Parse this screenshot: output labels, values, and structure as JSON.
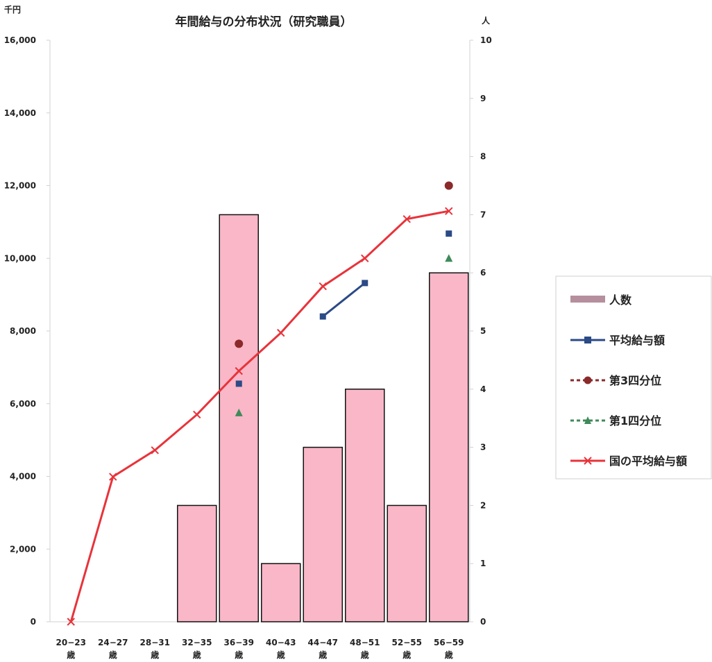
{
  "chart_data": {
    "type": "bar",
    "title": "年間給与の分布状況（研究職員）",
    "left_axis": {
      "unit_label": "千円",
      "ylim": [
        0,
        16000
      ],
      "ticks": [
        0,
        2000,
        4000,
        6000,
        8000,
        10000,
        12000,
        14000,
        16000
      ],
      "tick_labels": [
        "0",
        "2,000",
        "4,000",
        "6,000",
        "8,000",
        "10,000",
        "12,000",
        "14,000",
        "16,000"
      ]
    },
    "right_axis": {
      "unit_label": "人",
      "ylim": [
        0,
        10
      ],
      "ticks": [
        0,
        1,
        2,
        3,
        4,
        5,
        6,
        7,
        8,
        9,
        10
      ],
      "tick_labels": [
        "0",
        "1",
        "2",
        "3",
        "4",
        "5",
        "6",
        "7",
        "8",
        "9",
        "10"
      ]
    },
    "categories": [
      "20−23歳",
      "24−27歳",
      "28−31歳",
      "32−35歳",
      "36−39歳",
      "40−43歳",
      "44−47歳",
      "48−51歳",
      "52−55歳",
      "56−59歳"
    ],
    "category_label_top": [
      "20−23",
      "24−27",
      "28−31",
      "32−35",
      "36−39",
      "40−43",
      "44−47",
      "48−51",
      "52−55",
      "56−59"
    ],
    "category_label_bottom": "歳",
    "grid": false,
    "legend_position": "right",
    "series": [
      {
        "name": "人数",
        "type": "bar",
        "axis": "right",
        "color": "#f9b7c8",
        "stroke": "#111111",
        "values": [
          0,
          0,
          0,
          2,
          7,
          1,
          3,
          4,
          2,
          6
        ]
      },
      {
        "name": "平均給与額",
        "type": "line",
        "axis": "left",
        "color": "#2b4a86",
        "marker": "square",
        "values": [
          null,
          null,
          null,
          null,
          6550,
          null,
          8400,
          9320,
          null,
          10680
        ]
      },
      {
        "name": "第3四分位",
        "type": "scatter",
        "axis": "left",
        "color": "#8b2a2a",
        "marker": "circle",
        "values": [
          null,
          null,
          null,
          null,
          7650,
          null,
          null,
          null,
          null,
          12000
        ]
      },
      {
        "name": "第1四分位",
        "type": "scatter",
        "axis": "left",
        "color": "#3f8a5a",
        "marker": "triangle",
        "values": [
          null,
          null,
          null,
          null,
          5750,
          null,
          null,
          null,
          null,
          10000
        ]
      },
      {
        "name": "国の平均給与額",
        "type": "line",
        "axis": "left",
        "color": "#e8333a",
        "marker": "x",
        "values": [
          0,
          3990,
          4720,
          5700,
          6900,
          7950,
          9230,
          10000,
          11080,
          11300
        ]
      }
    ]
  }
}
